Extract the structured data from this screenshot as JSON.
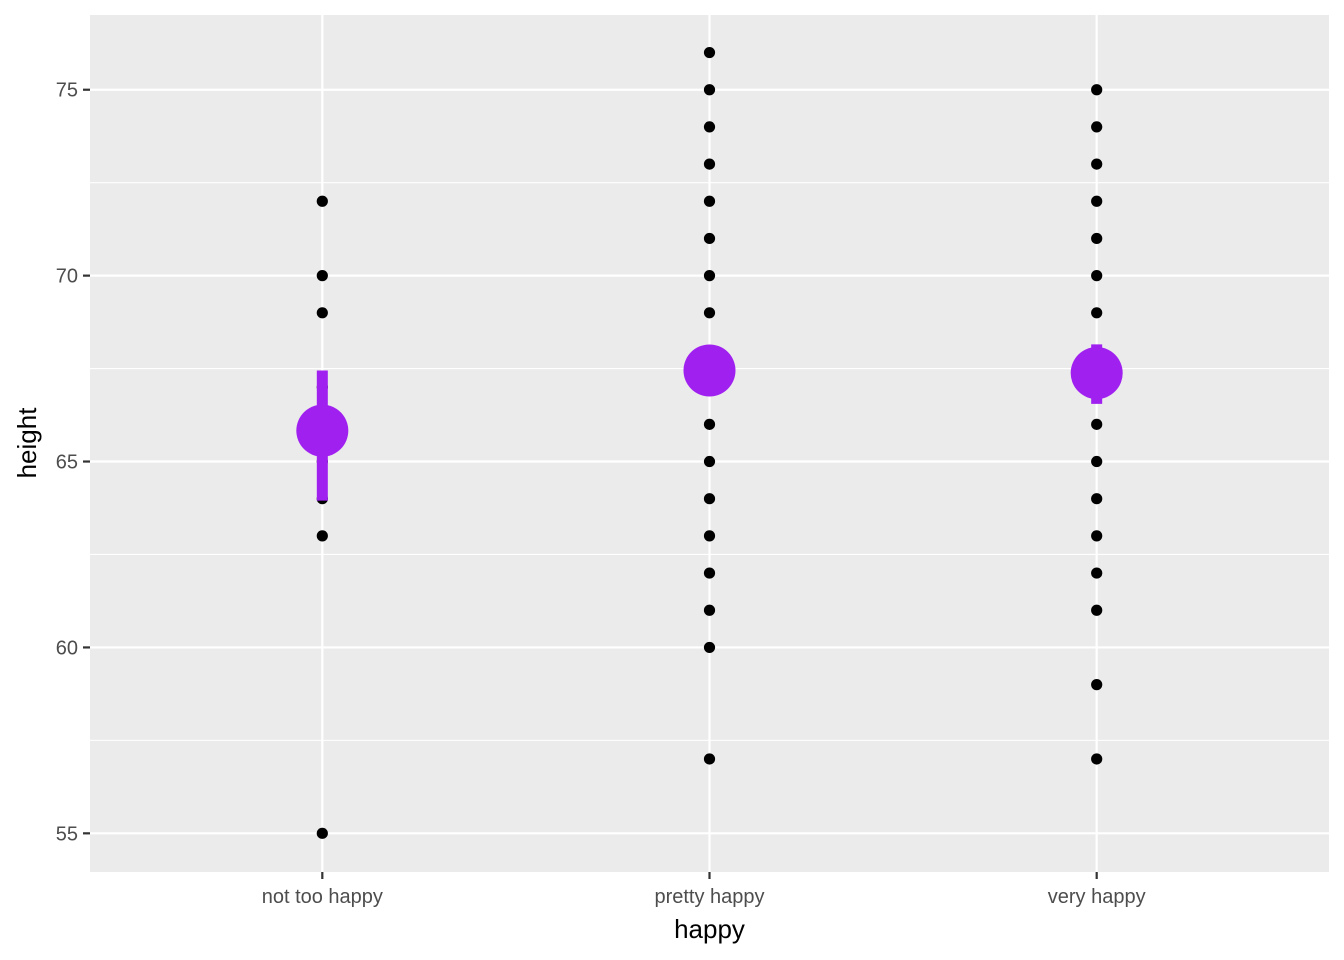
{
  "chart_data": {
    "type": "scatter",
    "title": "",
    "xlabel": "happy",
    "ylabel": "height",
    "categories": [
      "not too happy",
      "pretty happy",
      "very happy"
    ],
    "ylim": [
      53.96,
      77.01
    ],
    "y_ticks": [
      55,
      60,
      65,
      70,
      75
    ],
    "grid": true,
    "legend": "none",
    "series": [
      {
        "values": [
          {
            "category": "not too happy",
            "ys": [
              72,
              70,
              69,
              67,
              65,
              64,
              63,
              55
            ]
          },
          {
            "category": "pretty happy",
            "ys": [
              76,
              75,
              74,
              73,
              72,
              71,
              70,
              69,
              66,
              65,
              64,
              63,
              62,
              61,
              60,
              57
            ]
          },
          {
            "category": "very happy",
            "ys": [
              75,
              74,
              73,
              72,
              71,
              70,
              69,
              66,
              65,
              64,
              63,
              62,
              61,
              59,
              57
            ]
          }
        ]
      }
    ],
    "summary": [
      {
        "category": "not too happy",
        "mean": 65.83,
        "low": 63.95,
        "high": 67.45
      },
      {
        "category": "pretty happy",
        "mean": 67.45,
        "low": 66.9,
        "high": 68.1
      },
      {
        "category": "very happy",
        "mean": 67.38,
        "low": 66.55,
        "high": 68.15
      }
    ],
    "colors": {
      "panel": "#ebebeb",
      "grid": "#ffffff",
      "points": "#000000",
      "summary": "#a020f0"
    }
  }
}
